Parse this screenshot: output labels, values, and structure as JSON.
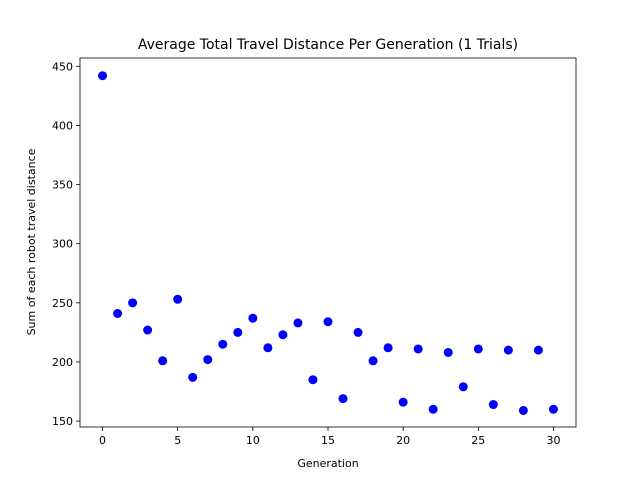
{
  "chart_data": {
    "type": "scatter",
    "title": "Average Total Travel Distance Per Generation (1 Trials)",
    "xlabel": "Generation",
    "ylabel": "Sum of each robot travel distance",
    "xlim": [
      -1.5,
      31.5
    ],
    "ylim": [
      145,
      457
    ],
    "xticks": [
      0,
      5,
      10,
      15,
      20,
      25,
      30
    ],
    "yticks": [
      150,
      200,
      250,
      300,
      350,
      400,
      450
    ],
    "grid": false,
    "marker_color": "#0000ff",
    "series": [
      {
        "x": [
          0,
          1,
          2,
          3,
          4,
          5,
          6,
          7,
          8,
          9,
          10,
          11,
          12,
          13,
          14,
          15,
          16,
          17,
          18,
          19,
          20,
          21,
          22,
          23,
          24,
          25,
          26,
          27,
          28,
          29,
          30
        ],
        "y": [
          442,
          241,
          250,
          227,
          201,
          253,
          187,
          202,
          215,
          225,
          237,
          212,
          223,
          233,
          185,
          234,
          169,
          225,
          201,
          212,
          166,
          211,
          160,
          208,
          179,
          211,
          164,
          210,
          159,
          210,
          160
        ]
      }
    ]
  }
}
